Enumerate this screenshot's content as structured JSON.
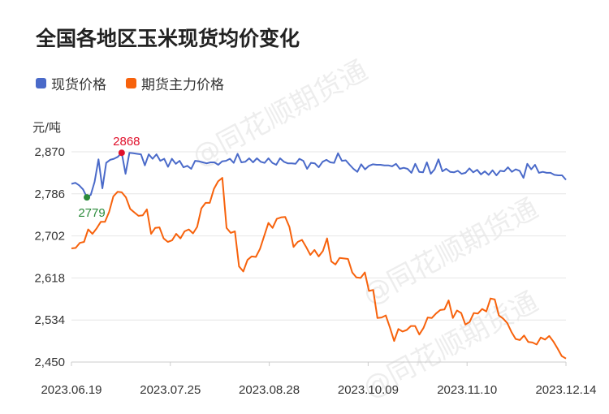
{
  "chart_data": {
    "type": "line",
    "title": "全国各地区玉米现货均价变化",
    "ylabel": "元/吨",
    "ylim": [
      2450,
      2870
    ],
    "yticks": [
      "2,870",
      "2,786",
      "2,702",
      "2,618",
      "2,534",
      "2,450"
    ],
    "xticks": [
      "2023.06.19",
      "2023.07.25",
      "2023.08.28",
      "2023.10.09",
      "2023.11.10",
      "2023.12.14"
    ],
    "legend_position": "top-left",
    "grid": "horizontal",
    "series": [
      {
        "name": "现货价格",
        "color": "#4a6ac9",
        "values": [
          2806,
          2808,
          2803,
          2795,
          2779,
          2784,
          2810,
          2855,
          2797,
          2848,
          2854,
          2856,
          2860,
          2868,
          2826,
          2868,
          2867,
          2866,
          2865,
          2843,
          2865,
          2856,
          2865,
          2852,
          2856,
          2840,
          2856,
          2846,
          2852,
          2839,
          2842,
          2836,
          2852,
          2851,
          2849,
          2847,
          2849,
          2849,
          2844,
          2851,
          2852,
          2856,
          2848,
          2866,
          2849,
          2850,
          2857,
          2849,
          2857,
          2850,
          2848,
          2857,
          2848,
          2844,
          2857,
          2850,
          2847,
          2847,
          2846,
          2856,
          2852,
          2836,
          2848,
          2847,
          2839,
          2850,
          2854,
          2849,
          2848,
          2867,
          2852,
          2853,
          2844,
          2836,
          2830,
          2845,
          2835,
          2842,
          2845,
          2844,
          2844,
          2843,
          2843,
          2841,
          2846,
          2836,
          2838,
          2836,
          2828,
          2846,
          2830,
          2829,
          2849,
          2826,
          2835,
          2855,
          2831,
          2836,
          2830,
          2829,
          2832,
          2826,
          2828,
          2837,
          2829,
          2834,
          2825,
          2831,
          2824,
          2833,
          2823,
          2832,
          2831,
          2839,
          2830,
          2835,
          2832,
          2818,
          2846,
          2835,
          2844,
          2828,
          2830,
          2828,
          2828,
          2824,
          2823,
          2823,
          2814
        ]
      },
      {
        "name": "期货主力价格",
        "color": "#f7620c",
        "values": [
          2677,
          2678,
          2688,
          2690,
          2715,
          2706,
          2717,
          2730,
          2730,
          2750,
          2781,
          2790,
          2789,
          2779,
          2756,
          2749,
          2742,
          2743,
          2755,
          2706,
          2718,
          2719,
          2697,
          2690,
          2693,
          2706,
          2697,
          2711,
          2715,
          2707,
          2720,
          2757,
          2768,
          2768,
          2796,
          2811,
          2818,
          2718,
          2708,
          2711,
          2641,
          2631,
          2654,
          2661,
          2660,
          2676,
          2702,
          2728,
          2718,
          2736,
          2739,
          2740,
          2720,
          2680,
          2690,
          2694,
          2680,
          2664,
          2674,
          2661,
          2672,
          2697,
          2651,
          2645,
          2658,
          2657,
          2656,
          2629,
          2619,
          2618,
          2629,
          2592,
          2594,
          2538,
          2539,
          2543,
          2519,
          2492,
          2516,
          2511,
          2514,
          2522,
          2522,
          2505,
          2518,
          2539,
          2538,
          2547,
          2554,
          2555,
          2573,
          2538,
          2553,
          2548,
          2525,
          2530,
          2548,
          2547,
          2556,
          2551,
          2577,
          2575,
          2543,
          2537,
          2528,
          2510,
          2496,
          2494,
          2503,
          2490,
          2489,
          2485,
          2499,
          2495,
          2502,
          2491,
          2477,
          2462,
          2457
        ]
      }
    ],
    "annotations": [
      {
        "label": "2868",
        "series": 0,
        "index": 13,
        "color": "#e0102b",
        "position": "above"
      },
      {
        "label": "2779",
        "series": 0,
        "index": 4,
        "color": "#2a8a3a",
        "position": "below"
      }
    ],
    "watermark": "@同花顺期货通"
  }
}
